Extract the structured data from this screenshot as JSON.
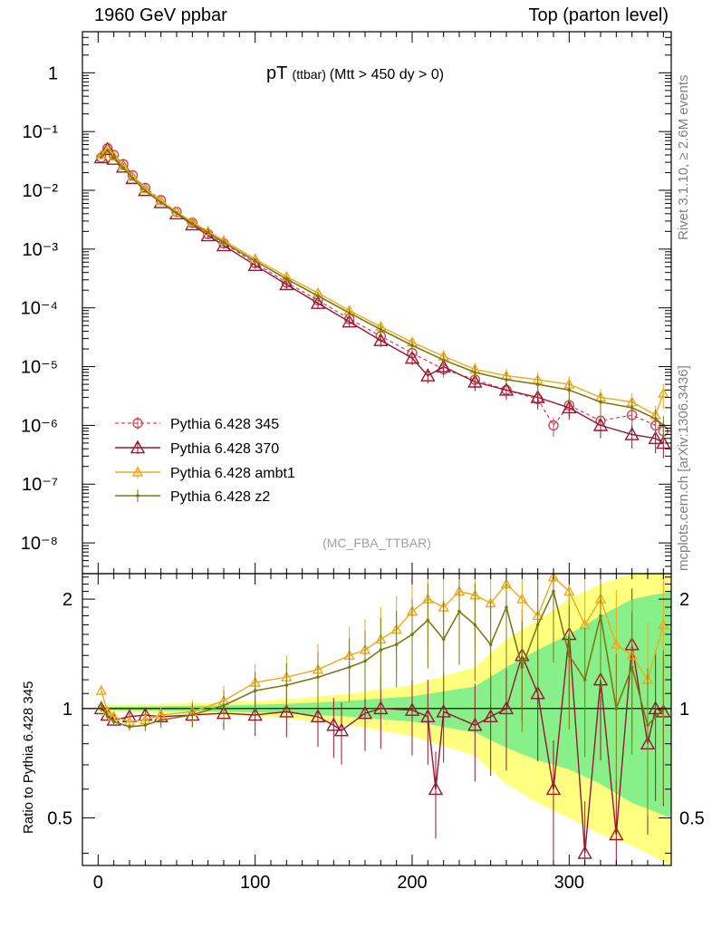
{
  "header": {
    "left": "1960 GeV ppbar",
    "right": "Top (parton level)"
  },
  "side_labels": {
    "rivet": "Rivet 3.1.10, ≥ 2.6M events",
    "mcplots": "mcplots.cern.ch [arXiv:1306.3436]"
  },
  "colors": {
    "p345": "#c8465a",
    "p370": "#9a1530",
    "ambt1": "#f0a818",
    "z2": "#7a7a14",
    "band_yellow": "#ffff80",
    "band_green": "#88f088"
  },
  "chart_data": [
    {
      "type": "line",
      "panel": "main",
      "title": "pT",
      "title_small": "(ttbar)",
      "title_rest": "(Mtt > 450 dy > 0)",
      "watermark": "(MC_FBA_TTBAR)",
      "xlim": [
        -10,
        365
      ],
      "ylim": [
        3e-09,
        5
      ],
      "yscale": "log",
      "ytick_labels": [
        "1",
        "10⁻¹",
        "10⁻²",
        "10⁻³",
        "10⁻⁴",
        "10⁻⁵",
        "10⁻⁶",
        "10⁻⁷",
        "10⁻⁸"
      ],
      "legend": [
        "Pythia 6.428 345",
        "Pythia 6.428 370",
        "Pythia 6.428 ambt1",
        "Pythia 6.428 z2"
      ],
      "series": [
        {
          "name": "Pythia 6.428 345",
          "x": [
            2,
            6,
            10,
            16,
            22,
            30,
            40,
            50,
            60,
            70,
            80,
            100,
            120,
            140,
            160,
            180,
            200,
            220,
            240,
            260,
            280,
            290,
            300,
            320,
            340,
            355,
            360
          ],
          "y": [
            0.036,
            0.052,
            0.04,
            0.028,
            0.018,
            0.011,
            0.0068,
            0.0043,
            0.0028,
            0.0018,
            0.00125,
            0.00058,
            0.00027,
            0.000135,
            6.5e-05,
            3.3e-05,
            1.7e-05,
            9e-06,
            6e-06,
            4e-06,
            2.8e-06,
            1e-06,
            2.2e-06,
            1.2e-06,
            1.5e-06,
            1e-06,
            8e-07
          ]
        },
        {
          "name": "Pythia 6.428 370",
          "x": [
            2,
            6,
            10,
            16,
            22,
            30,
            40,
            50,
            60,
            70,
            80,
            100,
            120,
            140,
            160,
            180,
            200,
            210,
            220,
            240,
            260,
            280,
            300,
            320,
            340,
            355,
            360
          ],
          "y": [
            0.036,
            0.05,
            0.034,
            0.025,
            0.016,
            0.01,
            0.0062,
            0.004,
            0.0026,
            0.0017,
            0.00115,
            0.00053,
            0.00025,
            0.00012,
            5.8e-05,
            2.8e-05,
            1.4e-05,
            7e-06,
            1e-05,
            5.5e-06,
            4e-06,
            3e-06,
            2e-06,
            1e-06,
            7e-07,
            6e-07,
            5e-07
          ]
        },
        {
          "name": "Pythia 6.428 ambt1",
          "x": [
            2,
            6,
            10,
            16,
            22,
            30,
            40,
            50,
            60,
            70,
            80,
            100,
            120,
            140,
            160,
            180,
            200,
            220,
            240,
            260,
            280,
            300,
            320,
            340,
            355,
            360
          ],
          "y": [
            0.04,
            0.05,
            0.038,
            0.026,
            0.017,
            0.0105,
            0.0066,
            0.0043,
            0.0029,
            0.002,
            0.0014,
            0.00068,
            0.00034,
            0.00018,
            9e-05,
            4.8e-05,
            2.6e-05,
            1.5e-05,
            9e-06,
            7e-06,
            6e-06,
            5e-06,
            3e-06,
            2.5e-06,
            1.5e-06,
            3.5e-06
          ]
        },
        {
          "name": "Pythia 6.428 z2",
          "x": [
            2,
            6,
            10,
            16,
            22,
            30,
            40,
            50,
            60,
            70,
            80,
            100,
            120,
            140,
            160,
            180,
            200,
            220,
            240,
            260,
            280,
            300,
            320,
            340,
            355,
            360
          ],
          "y": [
            0.037,
            0.048,
            0.036,
            0.024,
            0.016,
            0.0098,
            0.0062,
            0.0041,
            0.0027,
            0.0019,
            0.0013,
            0.00063,
            0.00031,
            0.00016,
            8.2e-05,
            4.3e-05,
            2.3e-05,
            1.3e-05,
            8e-06,
            6e-06,
            5e-06,
            4e-06,
            2.5e-06,
            2e-06,
            1.3e-06,
            1e-06
          ]
        }
      ]
    },
    {
      "type": "line",
      "panel": "ratio",
      "ylabel": "Ratio to Pythia 6.428 345",
      "xlim": [
        -10,
        365
      ],
      "ylim": [
        0.37,
        2.35
      ],
      "yscale": "log",
      "yticks": [
        0.5,
        1,
        2
      ],
      "ytick_labels": [
        "0.5",
        "1",
        "2"
      ],
      "xticks": [
        0,
        100,
        200,
        300
      ],
      "xtick_labels": [
        "0",
        "100",
        "200",
        "300"
      ],
      "bands": {
        "x": [
          0,
          40,
          80,
          120,
          160,
          200,
          240,
          260,
          280,
          300,
          320,
          340,
          365
        ],
        "yellow_lo": [
          0.98,
          0.97,
          0.96,
          0.94,
          0.9,
          0.84,
          0.74,
          0.62,
          0.55,
          0.5,
          0.45,
          0.42,
          0.37
        ],
        "yellow_hi": [
          1.02,
          1.03,
          1.04,
          1.06,
          1.1,
          1.16,
          1.3,
          1.55,
          1.75,
          2.0,
          2.2,
          2.35,
          2.35
        ],
        "green_lo": [
          0.99,
          0.985,
          0.98,
          0.97,
          0.95,
          0.92,
          0.86,
          0.78,
          0.72,
          0.68,
          0.62,
          0.55,
          0.5
        ],
        "green_hi": [
          1.01,
          1.015,
          1.02,
          1.03,
          1.05,
          1.08,
          1.15,
          1.3,
          1.45,
          1.6,
          1.8,
          2.0,
          2.1
        ]
      },
      "series": [
        {
          "name": "Pythia 6.428 370",
          "x": [
            2,
            6,
            10,
            20,
            30,
            40,
            60,
            80,
            100,
            120,
            140,
            150,
            155,
            170,
            180,
            200,
            210,
            215,
            220,
            240,
            250,
            260,
            270,
            280,
            290,
            300,
            310,
            320,
            330,
            340,
            350,
            355,
            360
          ],
          "y": [
            1.0,
            0.96,
            0.93,
            0.95,
            0.96,
            0.95,
            0.96,
            0.97,
            0.96,
            0.98,
            0.95,
            0.9,
            0.87,
            0.97,
            1.0,
            0.99,
            0.95,
            0.6,
            0.98,
            0.9,
            0.95,
            1.0,
            1.4,
            1.1,
            0.6,
            1.6,
            0.4,
            1.2,
            0.45,
            1.5,
            0.8,
            1.0,
            0.98
          ]
        },
        {
          "name": "Pythia 6.428 ambt1",
          "x": [
            2,
            6,
            10,
            20,
            30,
            40,
            60,
            80,
            100,
            120,
            140,
            160,
            170,
            180,
            190,
            200,
            210,
            220,
            230,
            240,
            250,
            260,
            270,
            280,
            290,
            300,
            310,
            320,
            330,
            340,
            350,
            360
          ],
          "y": [
            1.12,
            0.98,
            0.95,
            0.92,
            0.93,
            0.96,
            0.98,
            1.05,
            1.18,
            1.22,
            1.28,
            1.4,
            1.45,
            1.55,
            1.65,
            1.85,
            2.0,
            1.9,
            2.1,
            2.05,
            1.95,
            2.2,
            2.0,
            1.8,
            2.3,
            2.1,
            1.7,
            2.0,
            1.5,
            1.4,
            1.2,
            1.7
          ]
        },
        {
          "name": "Pythia 6.428 z2",
          "x": [
            2,
            6,
            10,
            20,
            30,
            40,
            60,
            80,
            100,
            120,
            140,
            160,
            170,
            180,
            190,
            200,
            210,
            220,
            230,
            240,
            250,
            260,
            270,
            280,
            290,
            300,
            310,
            320,
            330,
            340,
            350,
            360
          ],
          "y": [
            1.03,
            0.95,
            0.92,
            0.89,
            0.9,
            0.93,
            0.96,
            1.02,
            1.12,
            1.16,
            1.22,
            1.3,
            1.35,
            1.45,
            1.5,
            1.6,
            1.75,
            1.55,
            1.85,
            1.7,
            1.5,
            1.9,
            1.3,
            1.7,
            2.1,
            1.4,
            1.2,
            1.8,
            1.0,
            1.3,
            0.9,
            1.0
          ]
        }
      ]
    }
  ]
}
